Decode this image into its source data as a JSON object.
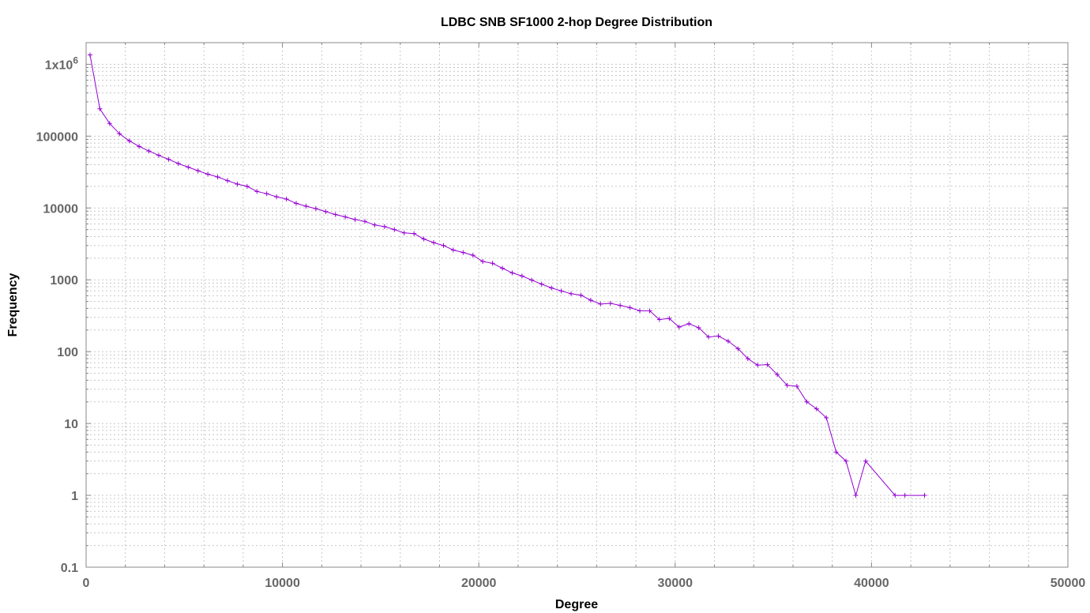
{
  "chart_data": {
    "type": "line",
    "title": "LDBC SNB SF1000 2-hop Degree Distribution",
    "xlabel": "Degree",
    "ylabel": "Frequency",
    "xlim": [
      0,
      50000
    ],
    "ylim": [
      0.1,
      2000000
    ],
    "yscale": "log",
    "grid": true,
    "legend": "none",
    "x_ticks": [
      {
        "value": 0,
        "label": "0"
      },
      {
        "value": 10000,
        "label": "10000"
      },
      {
        "value": 20000,
        "label": "20000"
      },
      {
        "value": 30000,
        "label": "30000"
      },
      {
        "value": 40000,
        "label": "40000"
      },
      {
        "value": 50000,
        "label": "50000"
      }
    ],
    "y_ticks": [
      {
        "value": 0.1,
        "label": "0.1"
      },
      {
        "value": 1,
        "label": "1"
      },
      {
        "value": 10,
        "label": "10"
      },
      {
        "value": 100,
        "label": "100"
      },
      {
        "value": 1000,
        "label": "1000"
      },
      {
        "value": 10000,
        "label": "10000"
      },
      {
        "value": 100000,
        "label": "100000"
      },
      {
        "value": 1000000,
        "label": "1x10",
        "superscript": "6"
      }
    ],
    "series": [
      {
        "color": "#9400d3",
        "x": [
          200,
          700,
          1200,
          1700,
          2200,
          2700,
          3200,
          3700,
          4200,
          4700,
          5200,
          5700,
          6200,
          6700,
          7200,
          7700,
          8200,
          8700,
          9200,
          9700,
          10200,
          10700,
          11200,
          11700,
          12200,
          12700,
          13200,
          13700,
          14200,
          14700,
          15200,
          15700,
          16200,
          16700,
          17200,
          17700,
          18200,
          18700,
          19200,
          19700,
          20200,
          20700,
          21200,
          21700,
          22200,
          22700,
          23200,
          23700,
          24200,
          24700,
          25200,
          25700,
          26200,
          26700,
          27200,
          27700,
          28200,
          28700,
          29200,
          29700,
          30200,
          30700,
          31200,
          31700,
          32200,
          32700,
          33200,
          33700,
          34200,
          34700,
          35200,
          35700,
          36200,
          36700,
          37200,
          37700,
          38200,
          38700,
          39200,
          39700,
          41200,
          41700,
          42700
        ],
        "y": [
          1350000,
          240000,
          150000,
          108000,
          86000,
          72000,
          62000,
          54000,
          47500,
          41500,
          37000,
          33000,
          29500,
          27000,
          24000,
          21500,
          20000,
          17000,
          15800,
          14300,
          13300,
          11600,
          10600,
          9800,
          8900,
          8100,
          7500,
          6900,
          6500,
          5800,
          5500,
          5000,
          4500,
          4400,
          3700,
          3300,
          3000,
          2600,
          2400,
          2200,
          1800,
          1700,
          1450,
          1250,
          1130,
          990,
          870,
          770,
          700,
          640,
          610,
          520,
          460,
          470,
          440,
          410,
          370,
          370,
          280,
          290,
          220,
          245,
          215,
          160,
          165,
          140,
          110,
          80,
          65,
          66,
          48,
          34,
          33,
          20,
          16,
          12,
          4,
          3,
          1,
          3,
          1,
          1,
          1
        ]
      }
    ]
  }
}
